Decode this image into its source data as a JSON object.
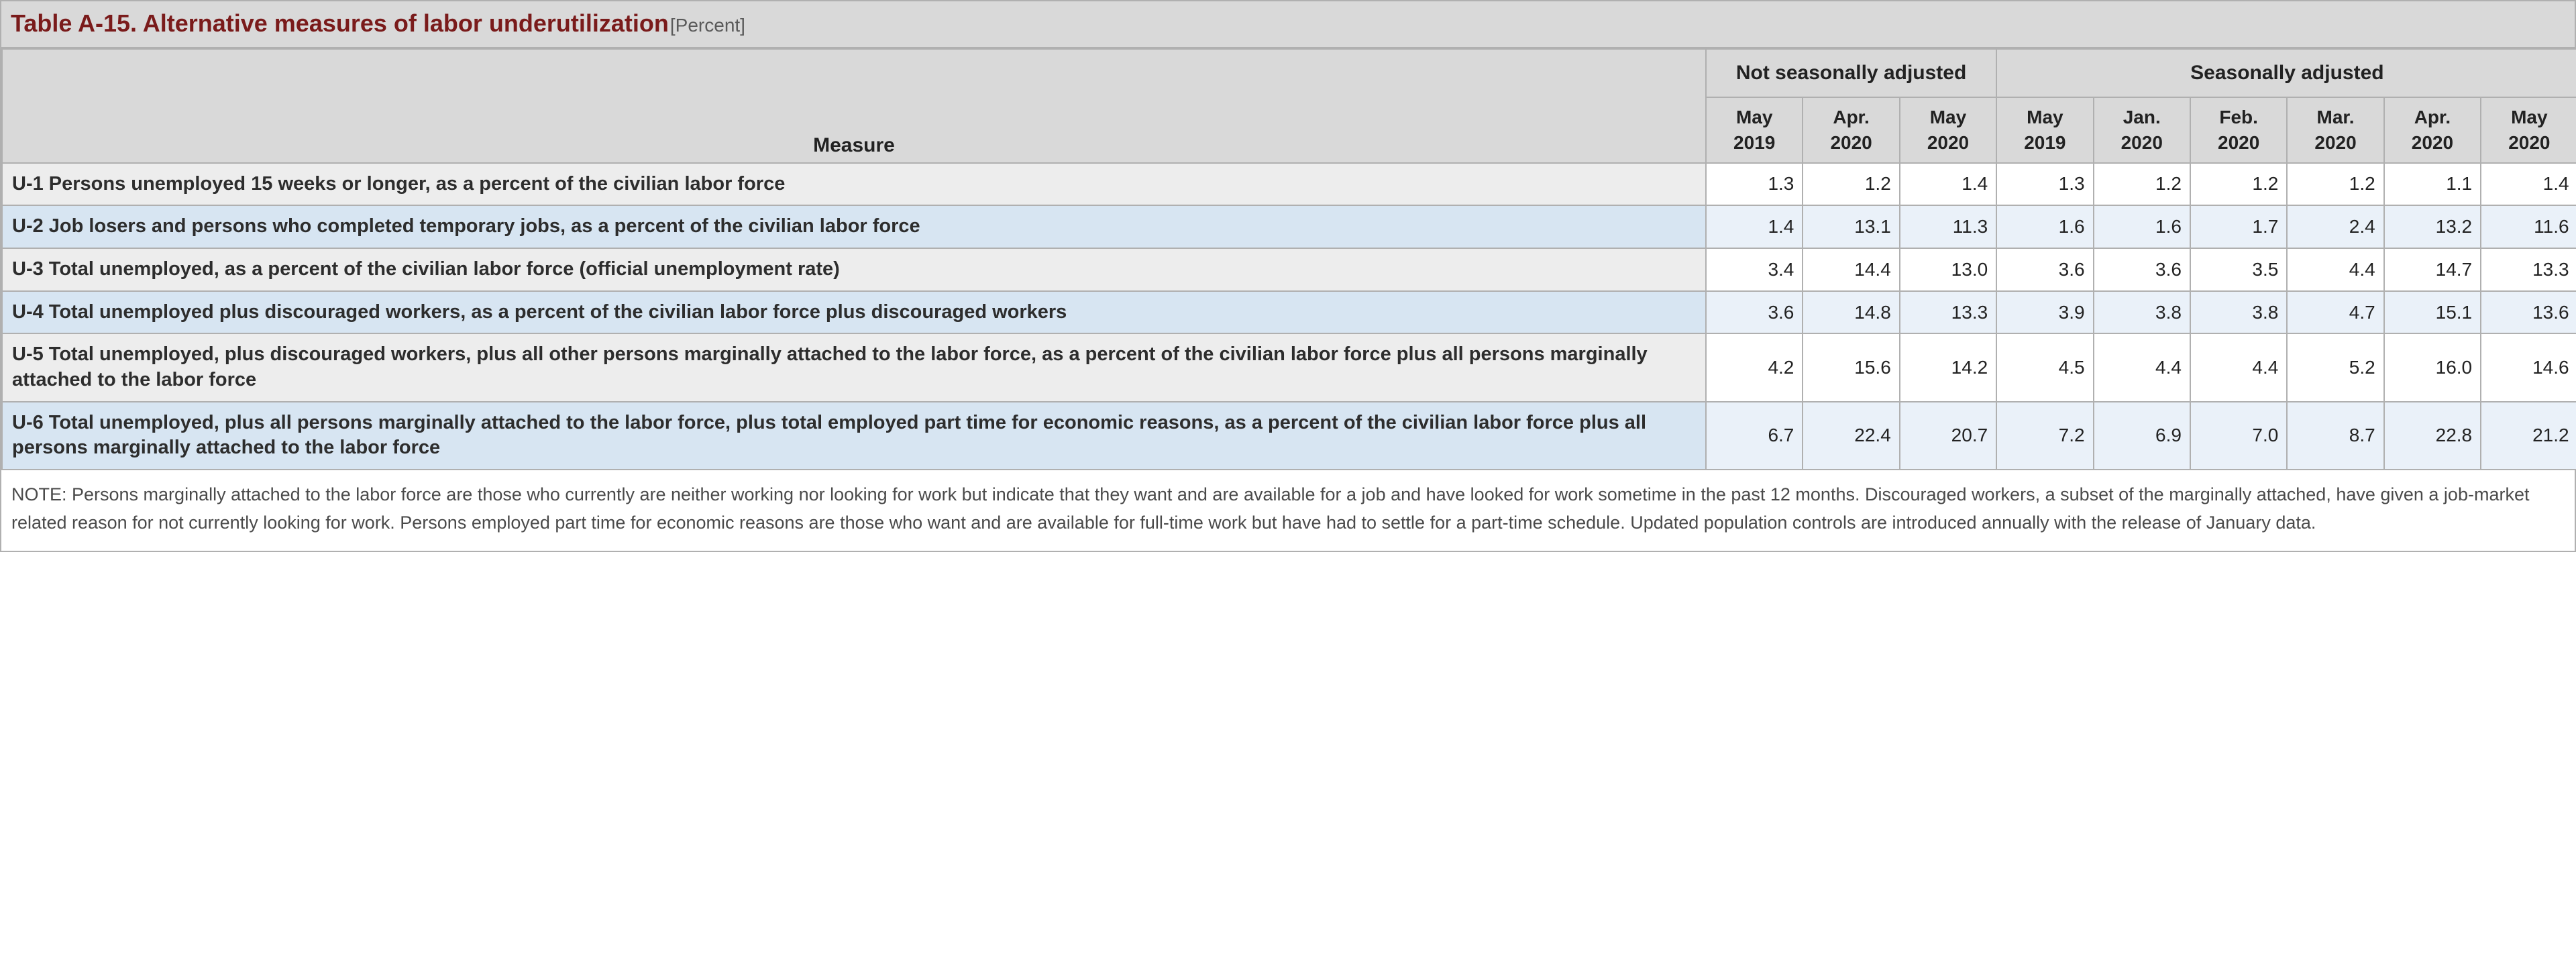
{
  "title": {
    "main": "Table A-15. Alternative measures of labor underutilization",
    "unit": "[Percent]"
  },
  "headers": {
    "measure": "Measure",
    "groups": [
      {
        "label": "Not seasonally adjusted",
        "span": 3
      },
      {
        "label": "Seasonally adjusted",
        "span": 6
      }
    ],
    "cols": [
      "May 2019",
      "Apr. 2020",
      "May 2020",
      "May 2019",
      "Jan. 2020",
      "Feb. 2020",
      "Mar. 2020",
      "Apr. 2020",
      "May 2020"
    ]
  },
  "rows": [
    {
      "label": "U-1 Persons unemployed 15 weeks or longer, as a percent of the civilian labor force",
      "vals": [
        "1.3",
        "1.2",
        "1.4",
        "1.3",
        "1.2",
        "1.2",
        "1.2",
        "1.1",
        "1.4"
      ]
    },
    {
      "label": "U-2 Job losers and persons who completed temporary jobs, as a percent of the civilian labor force",
      "vals": [
        "1.4",
        "13.1",
        "11.3",
        "1.6",
        "1.6",
        "1.7",
        "2.4",
        "13.2",
        "11.6"
      ]
    },
    {
      "label": "U-3 Total unemployed, as a percent of the civilian labor force (official unemployment rate)",
      "vals": [
        "3.4",
        "14.4",
        "13.0",
        "3.6",
        "3.6",
        "3.5",
        "4.4",
        "14.7",
        "13.3"
      ]
    },
    {
      "label": "U-4 Total unemployed plus discouraged workers, as a percent of the civilian labor force plus discouraged workers",
      "vals": [
        "3.6",
        "14.8",
        "13.3",
        "3.9",
        "3.8",
        "3.8",
        "4.7",
        "15.1",
        "13.6"
      ]
    },
    {
      "label": "U-5 Total unemployed, plus discouraged workers, plus all other persons marginally attached to the labor force, as a percent of the civilian labor force plus all persons marginally attached to the labor force",
      "vals": [
        "4.2",
        "15.6",
        "14.2",
        "4.5",
        "4.4",
        "4.4",
        "5.2",
        "16.0",
        "14.6"
      ]
    },
    {
      "label": "U-6 Total unemployed, plus all persons marginally attached to the labor force, plus total employed part time for economic reasons, as a percent of the civilian labor force plus all persons marginally attached to the labor force",
      "vals": [
        "6.7",
        "22.4",
        "20.7",
        "7.2",
        "6.9",
        "7.0",
        "8.7",
        "22.8",
        "21.2"
      ]
    }
  ],
  "note": "NOTE: Persons marginally attached to the labor force are those who currently are neither working nor looking for work but indicate that they want and are available for a job and have looked for work sometime in the past 12 months. Discouraged workers, a subset of the marginally attached, have given a job-market related reason for not currently looking for work. Persons employed part time for economic reasons are those who want and are available for full-time work but have had to settle for a part-time schedule. Updated population controls are introduced annually with the release of January data.",
  "style": {
    "title_color": "#7a1b1b",
    "header_bg": "#d9d9d9",
    "border_color": "#b0b0b0",
    "row_odd_label_bg": "#ededed",
    "row_even_label_bg": "#d7e5f2",
    "row_even_val_bg": "#eaf1f9",
    "font_family": "Verdana, Geneva, sans-serif"
  }
}
